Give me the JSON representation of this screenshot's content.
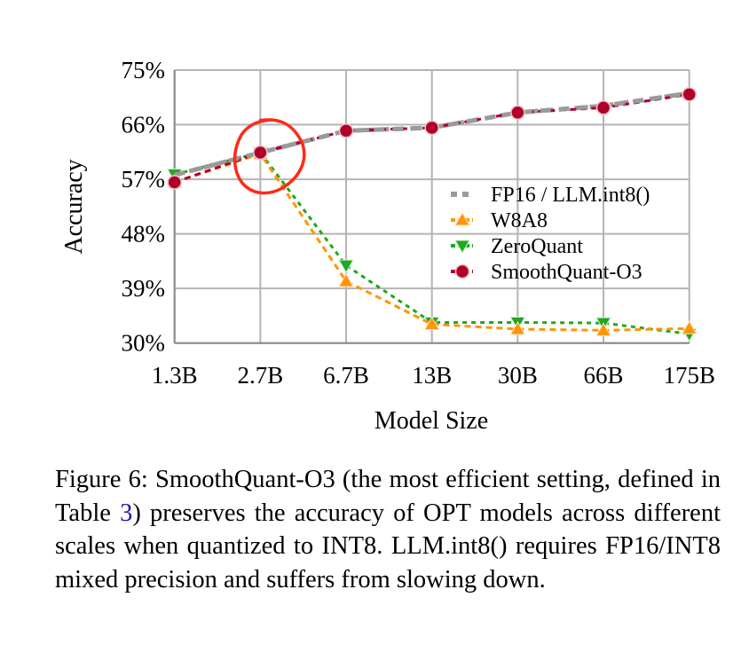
{
  "chart_data": {
    "type": "line",
    "xlabel": "Model Size",
    "ylabel": "Accuracy",
    "categories": [
      "1.3B",
      "2.7B",
      "6.7B",
      "13B",
      "30B",
      "66B",
      "175B"
    ],
    "ylim": [
      30,
      75
    ],
    "yticks": [
      "30%",
      "39%",
      "48%",
      "57%",
      "66%",
      "75%"
    ],
    "ytick_values": [
      30,
      39,
      48,
      57,
      66,
      75
    ],
    "grid": true,
    "legend_position": "right-middle",
    "series": [
      {
        "name": "FP16 / LLM.int8()",
        "color": "#9a9a9a",
        "marker": "none",
        "values": [
          57.7,
          61.4,
          65.0,
          65.5,
          68.0,
          69.1,
          71.2
        ]
      },
      {
        "name": "W8A8",
        "color": "#ff9500",
        "marker": "triangle-up",
        "values": [
          56.5,
          61.2,
          40.2,
          33.1,
          32.3,
          32.1,
          32.4
        ]
      },
      {
        "name": "ZeroQuant",
        "color": "#1fa81f",
        "marker": "triangle-down",
        "values": [
          57.8,
          61.4,
          42.8,
          33.4,
          33.4,
          33.3,
          31.5
        ]
      },
      {
        "name": "SmoothQuant-O3",
        "color": "#b0002a",
        "marker": "circle",
        "values": [
          56.5,
          61.4,
          65.0,
          65.5,
          68.0,
          68.8,
          71.0
        ]
      }
    ],
    "annotation": {
      "shape": "hand-drawn circle",
      "color": "#ff2a1a",
      "around_category": "2.7B"
    }
  },
  "caption": {
    "prefix": "Figure 6: SmoothQuant-O3 (the most efficient setting, defined in Table ",
    "ref": "3",
    "suffix": ") preserves the accuracy of OPT models across different scales when quantized to INT8. LLM.int8() requires FP16/INT8 mixed precision and suffers from slowing down."
  }
}
